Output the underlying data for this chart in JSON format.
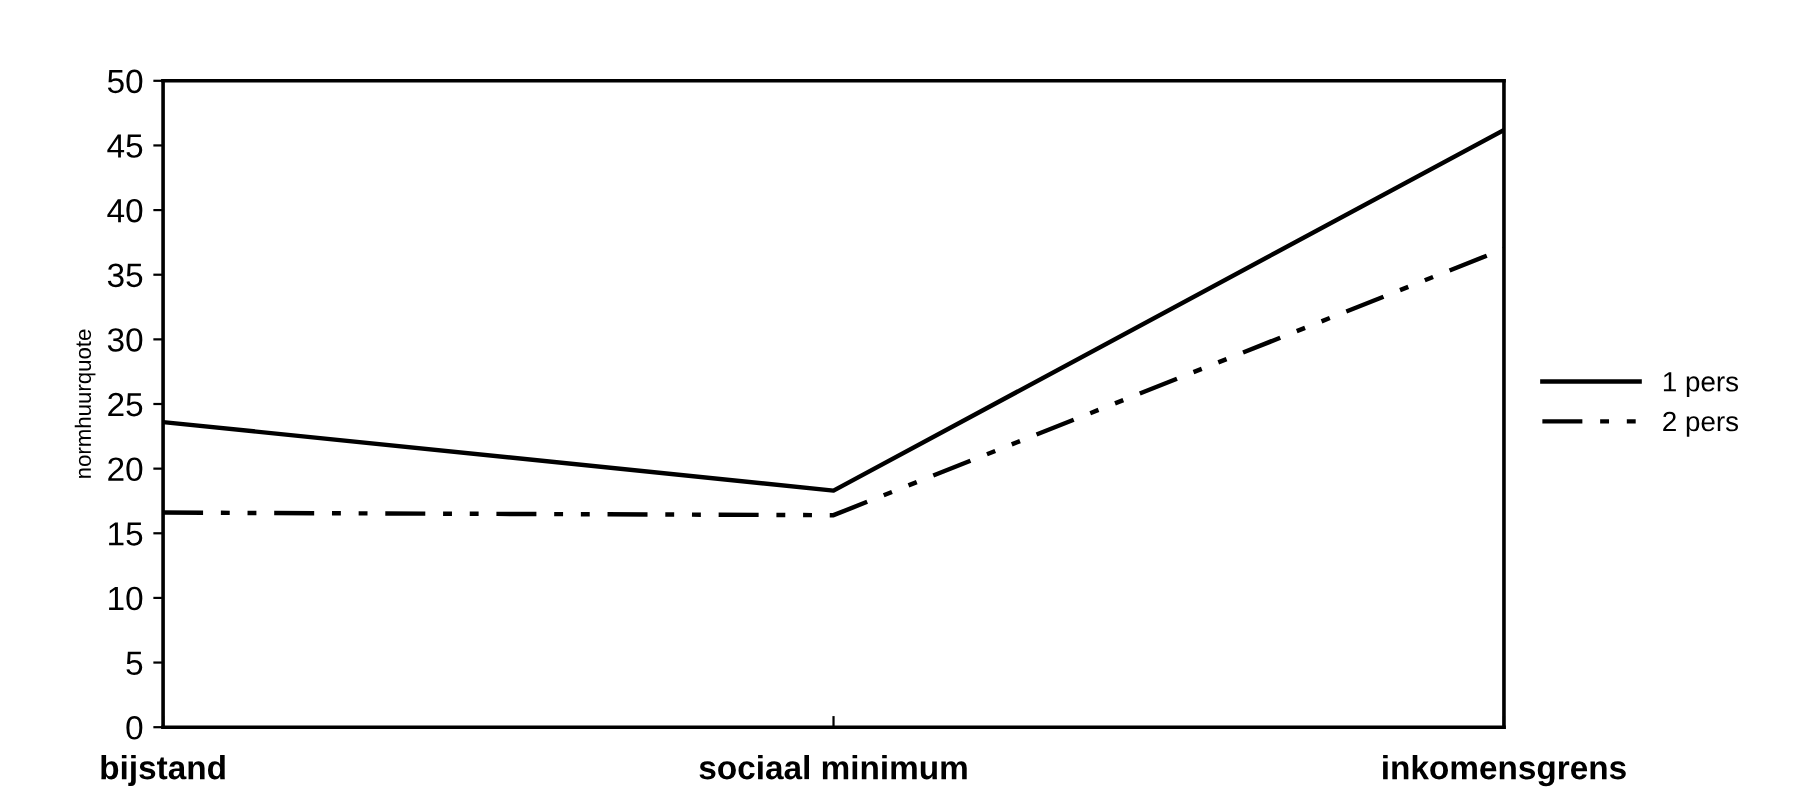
{
  "chart_data": {
    "type": "line",
    "ylabel": "normhuurquote",
    "categories": [
      "bijstand",
      "sociaal minimum",
      "inkomensgrens"
    ],
    "series": [
      {
        "name": "1 pers",
        "color": "#000000",
        "line_style": "solid",
        "values": [
          23.6,
          18.3,
          46.2
        ]
      },
      {
        "name": "2 pers",
        "color": "#000000",
        "line_style": "dashed",
        "values": [
          16.6,
          16.4,
          37.0
        ]
      }
    ],
    "ylim": [
      0,
      50
    ],
    "yticks": [
      0,
      5,
      10,
      15,
      20,
      25,
      30,
      35,
      40,
      45,
      50
    ],
    "grid": false,
    "legend": "right",
    "marker": "none"
  }
}
